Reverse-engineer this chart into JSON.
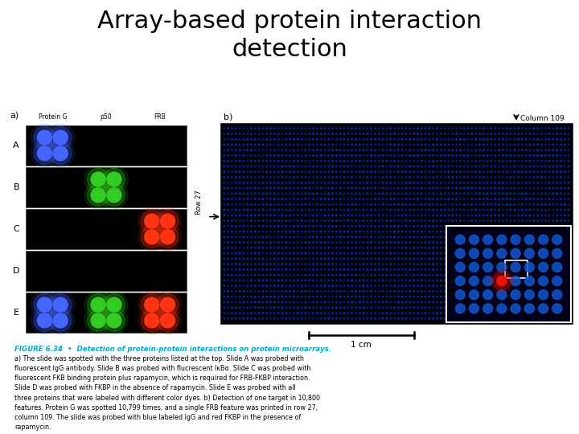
{
  "title": "Array-based protein interaction\ndetection",
  "title_fontsize": 22,
  "bg_color": "#ffffff",
  "figure_label_a": "a)",
  "figure_label_b": "b)",
  "col_label": "Column 109",
  "row_label": "Row 27",
  "scale_label": "1 cm",
  "caption_title": "FIGURE 6.34  •  Detection of protein-protein interactions on protein microarrays.",
  "caption_body": "a) The slide was spotted with the three proteins listed at the top. Slide A was probed with\nfluorescent IgG antibody. Slide B was probed with flucrescent IκBα. Slide C was probed with\nfluorescent FKB binding protein plus rapamycin, which is required for FRB-FKBP interaction.\nSlide D was probed with FKBP in the absence of rapamycin. Slide E was probed with all\nthree proteins that were labeled with different color dyes. b) Detection of one target in 10,800\nfeatures. Protein G was spotted 10,799 times, and a single FRB feature was printed in row 27,\ncolumn 109. The slide was probed with blue labeled IgG and red FKBP in the presence of\nrapamycin.",
  "slide_rows": [
    "A",
    "B",
    "C",
    "D",
    "E"
  ],
  "col_headers": [
    "Protein G",
    "p50",
    "FRB"
  ],
  "dot_blue": "#4466ff",
  "dot_green": "#33cc22",
  "dot_red": "#ff3311",
  "array_bg": "#000010",
  "array_dot_color": "#0033aa",
  "highlight_dot_color": "#cc2200",
  "caption_color": "#00aacc",
  "caption_body_color": "#000000",
  "slide_bg": "#000000",
  "slide_border": "#444444",
  "panel_b_bg": "#000008"
}
